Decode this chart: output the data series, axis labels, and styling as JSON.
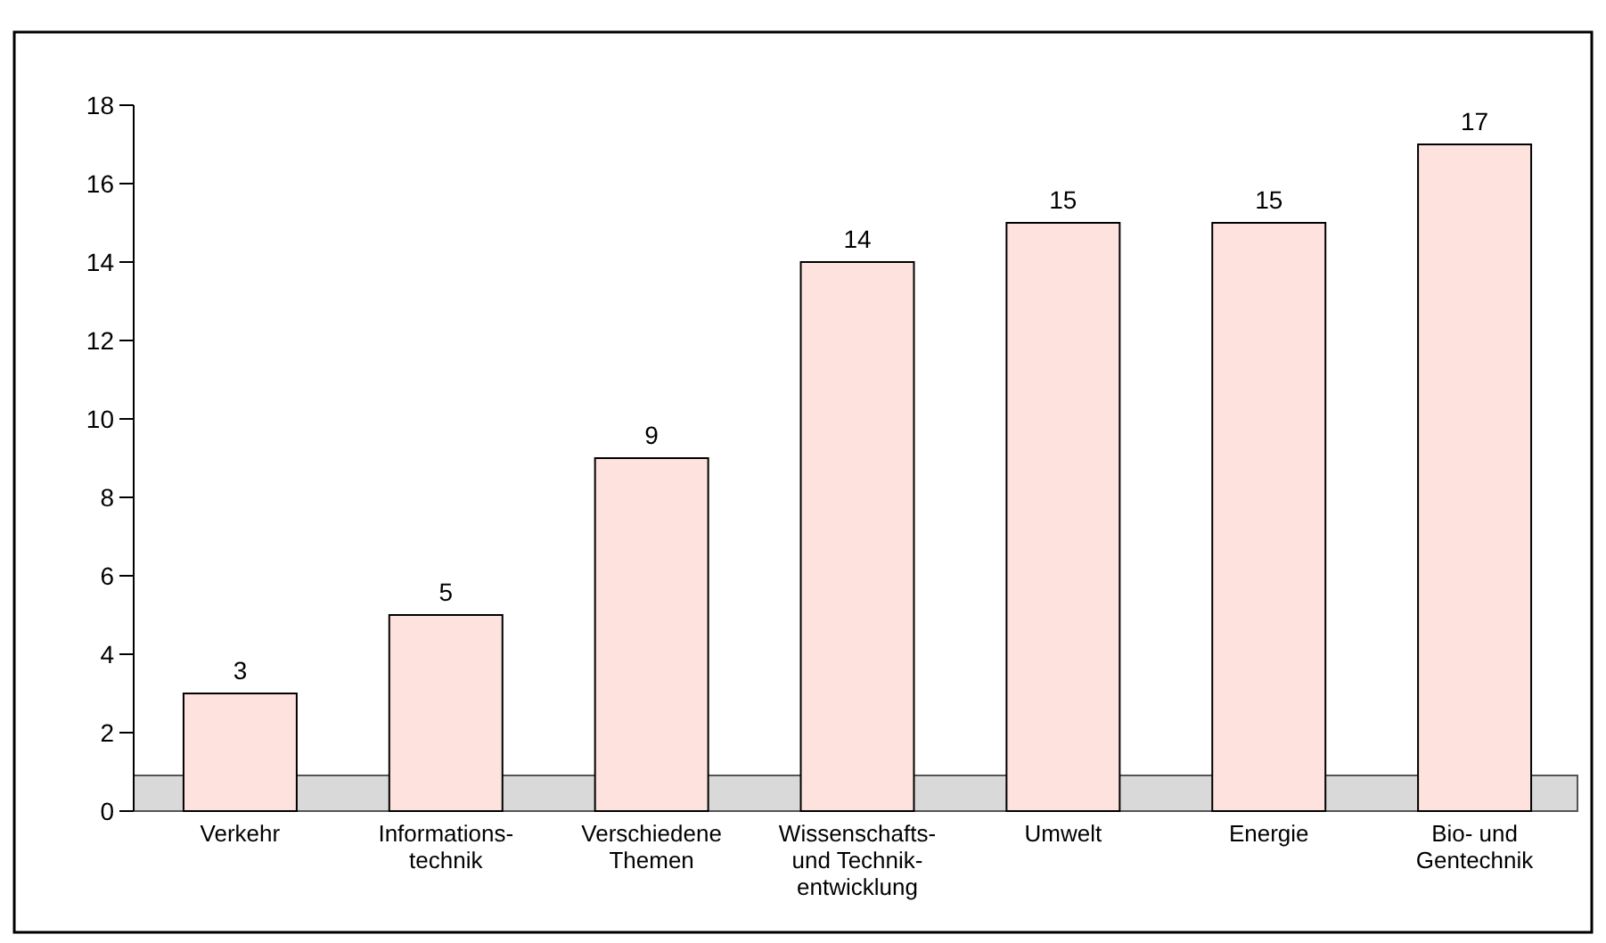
{
  "chart_data": {
    "type": "bar",
    "categories": [
      "Verkehr",
      "Informations-\ntechnik",
      "Verschiedene\nThemen",
      "Wissenschafts-\nund Technik-\nentwicklung",
      "Umwelt",
      "Energie",
      "Bio- und\nGentechnik"
    ],
    "values": [
      3,
      5,
      9,
      14,
      15,
      15,
      17
    ],
    "color": "#fde2dd",
    "ylim": [
      0,
      18
    ],
    "yticks": [
      0,
      2,
      4,
      6,
      8,
      10,
      12,
      14,
      16,
      18
    ],
    "data_labels": true,
    "grid": false
  }
}
